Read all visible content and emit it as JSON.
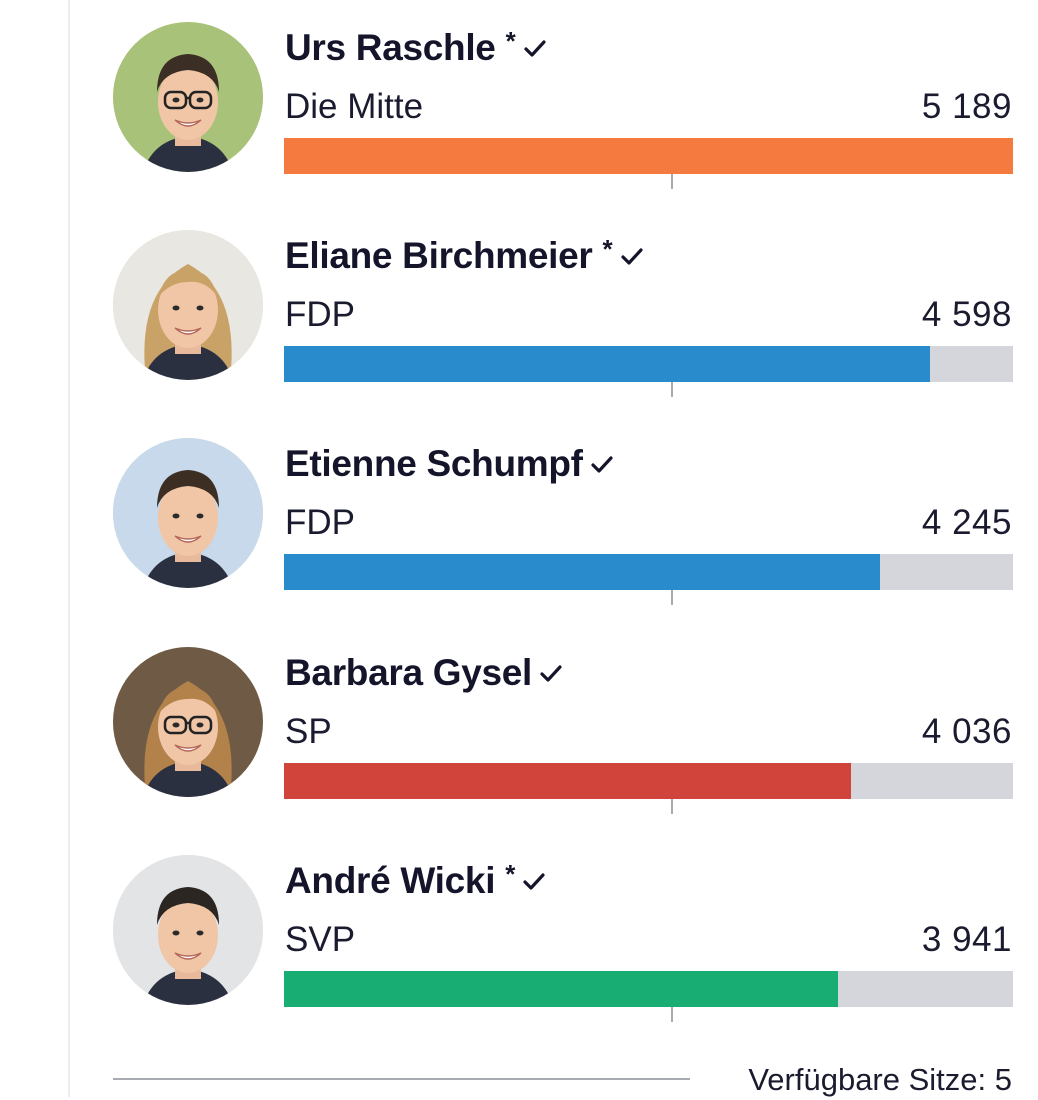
{
  "candidates": [
    {
      "name": "Urs Raschle",
      "incumbent_mark": "*",
      "elected": true,
      "party": "Die Mitte",
      "votes": "5 189",
      "votes_value": 5189,
      "bar_color": "#f47a40",
      "hair": "#3b2e24",
      "bg": "#a9c27a",
      "glasses": true,
      "photo_icon": "candidate-portrait"
    },
    {
      "name": "Eliane Birchmeier",
      "incumbent_mark": "*",
      "elected": true,
      "party": "FDP",
      "votes": "4 598",
      "votes_value": 4598,
      "bar_color": "#2a8bcc",
      "hair": "#c9a268",
      "bg": "#e9e7e2",
      "glasses": false,
      "photo_icon": "candidate-portrait"
    },
    {
      "name": "Etienne Schumpf",
      "incumbent_mark": "",
      "elected": true,
      "party": "FDP",
      "votes": "4 245",
      "votes_value": 4245,
      "bar_color": "#2a8bcc",
      "hair": "#3d2e24",
      "bg": "#c7d9ea",
      "glasses": false,
      "photo_icon": "candidate-portrait"
    },
    {
      "name": "Barbara Gysel",
      "incumbent_mark": "",
      "elected": true,
      "party": "SP",
      "votes": "4 036",
      "votes_value": 4036,
      "bar_color": "#d1443c",
      "hair": "#b2824a",
      "bg": "#6f5a45",
      "glasses": true,
      "photo_icon": "candidate-portrait"
    },
    {
      "name": "André Wicki",
      "incumbent_mark": "*",
      "elected": true,
      "party": "SVP",
      "votes": "3 941",
      "votes_value": 3941,
      "bar_color": "#18ad72",
      "hair": "#2c2622",
      "bg": "#e2e4e6",
      "glasses": false,
      "photo_icon": "candidate-portrait"
    }
  ],
  "max_votes": 5189,
  "footer": {
    "available_seats": "Verfügbare Sitze: 5"
  },
  "check_icon": "checkmark-icon"
}
